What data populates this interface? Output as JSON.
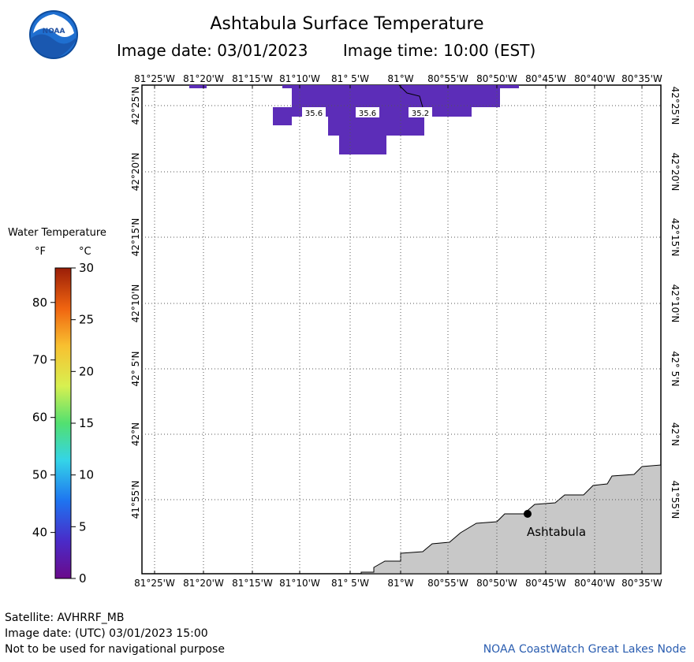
{
  "header": {
    "title": "Ashtabula Surface Temperature",
    "image_date": "Image date: 03/01/2023",
    "image_time": "Image time: 10:00 (EST)"
  },
  "logo": {
    "text": "NOAA"
  },
  "legend": {
    "title": "Water Temperature",
    "unit_f": "°F",
    "unit_c": "°C",
    "fahrenheit_ticks": [
      "80",
      "70",
      "60",
      "50",
      "40"
    ],
    "celsius_ticks": [
      "30",
      "25",
      "20",
      "15",
      "10",
      "5",
      "0"
    ]
  },
  "map": {
    "lon_labels": [
      "81°25'W",
      "81°20'W",
      "81°15'W",
      "81°10'W",
      "81° 5'W",
      "81°W",
      "80°55'W",
      "80°50'W",
      "80°45'W",
      "80°40'W",
      "80°35'W"
    ],
    "lat_labels": [
      "42°25'N",
      "42°20'N",
      "42°15'N",
      "42°10'N",
      "42° 5'N",
      "42°N",
      "41°55'N"
    ],
    "temperature_labels": [
      "35.6",
      "35.6",
      "35.2"
    ],
    "city": "Ashtabula",
    "colors": {
      "water_ice": "#5c2db8",
      "land": "#c8c8c8"
    }
  },
  "footer": {
    "satellite": "Satellite: AVHRRF_MB",
    "utc_date": "Image date: (UTC) 03/01/2023  15:00",
    "disclaimer": "Not to be used for navigational purpose",
    "credit": "NOAA CoastWatch Great Lakes Node"
  }
}
